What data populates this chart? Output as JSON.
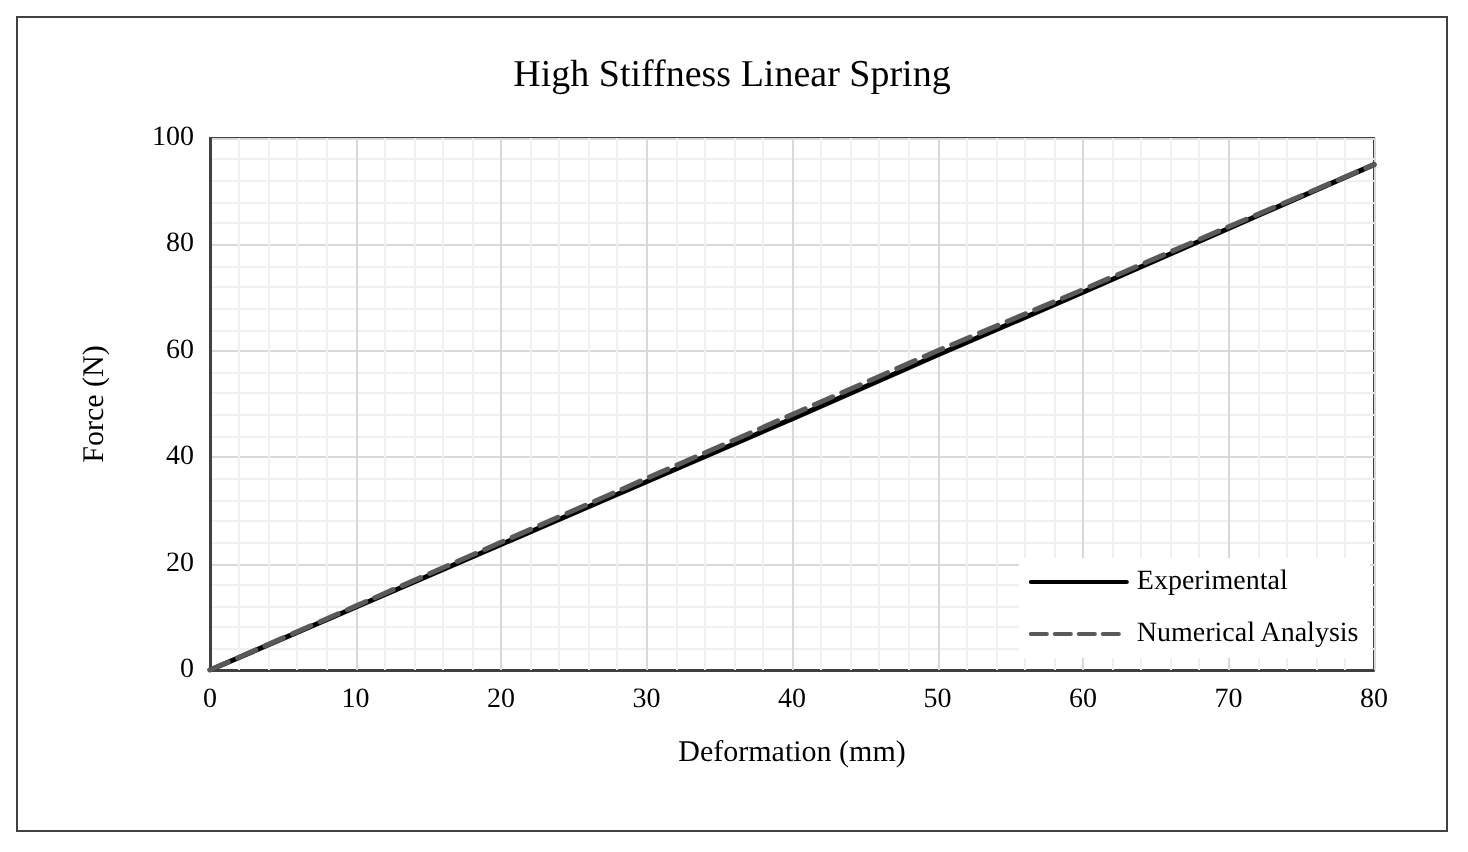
{
  "chart_data": {
    "type": "line",
    "title": "High Stiffness Linear Spring",
    "xlabel": "Deformation (mm)",
    "ylabel": "Force (N)",
    "x": [
      0,
      10,
      20,
      30,
      40,
      50,
      60,
      70,
      80
    ],
    "series": [
      {
        "name": "Experimental",
        "color": "#000000",
        "line_style": "solid",
        "values": [
          0,
          11.8,
          23.6,
          35.4,
          47.2,
          59.2,
          71,
          83,
          95
        ]
      },
      {
        "name": "Numerical Analysis",
        "color": "#595959",
        "line_style": "dashed",
        "values": [
          0,
          12,
          24,
          36,
          48,
          60,
          71.5,
          83.3,
          95
        ]
      }
    ],
    "xlim": [
      0,
      80
    ],
    "xticks": [
      0,
      10,
      20,
      30,
      40,
      50,
      60,
      70,
      80
    ],
    "ylim": [
      0,
      100
    ],
    "yticks": [
      0,
      20,
      40,
      60,
      80,
      100
    ],
    "grid": true,
    "legend": "bottom right",
    "marker": "none"
  }
}
